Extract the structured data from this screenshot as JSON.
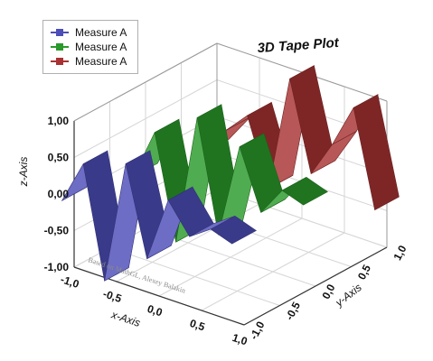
{
  "chart_data": {
    "type": "3d-tape",
    "title": "3D Tape Plot",
    "annotation": "Based on MathGL, Alexey Balakin",
    "xlabel": "x-Axis",
    "ylabel": "y-Axis",
    "zlabel": "z-Axis",
    "xlim": [
      -1.0,
      1.0
    ],
    "ylim": [
      -1.0,
      1.0
    ],
    "zlim": [
      -1.0,
      1.0
    ],
    "x_ticks": [
      "-1,0",
      "-0,5",
      "0,0",
      "0,5",
      "1,0"
    ],
    "y_ticks": [
      "-1,0",
      "-0,5",
      "0,0",
      "0,5",
      "1,0"
    ],
    "z_ticks": [
      "-1,00",
      "-0,50",
      "0,00",
      "0,50",
      "1,00"
    ],
    "grid": true,
    "legend_position": "top-left",
    "series": [
      {
        "name": "Measure A",
        "color": "#4d4db8",
        "x": [
          -1.0,
          -0.75,
          -0.5,
          -0.25,
          0.0,
          0.25,
          0.5,
          0.75,
          1.0
        ],
        "y": [
          -1.0,
          -1.0,
          -1.0,
          -1.0,
          -1.0,
          -1.0,
          -1.0,
          -1.0,
          -1.0
        ],
        "z": [
          0.0,
          0.6,
          -0.9,
          0.8,
          -0.4,
          0.5,
          0.1,
          0.3,
          0.2
        ]
      },
      {
        "name": "Measure A",
        "color": "#2a9a2a",
        "x": [
          -1.0,
          -0.75,
          -0.5,
          -0.25,
          0.0,
          0.25,
          0.5,
          0.75,
          1.0
        ],
        "y": [
          0.0,
          0.0,
          0.0,
          0.0,
          0.0,
          0.0,
          0.0,
          0.0,
          0.0
        ],
        "z": [
          -0.2,
          0.5,
          -0.9,
          0.9,
          -0.6,
          0.7,
          -0.1,
          0.3,
          0.2
        ]
      },
      {
        "name": "Measure A",
        "color": "#a83232",
        "x": [
          -1.0,
          -0.75,
          -0.5,
          -0.25,
          0.0,
          0.25,
          0.5,
          0.75,
          1.0
        ],
        "y": [
          1.0,
          1.0,
          1.0,
          1.0,
          1.0,
          1.0,
          1.0,
          1.0,
          1.0
        ],
        "z": [
          -0.4,
          0.0,
          0.3,
          -0.6,
          1.0,
          -0.2,
          0.3,
          0.9,
          -0.4
        ]
      }
    ]
  }
}
